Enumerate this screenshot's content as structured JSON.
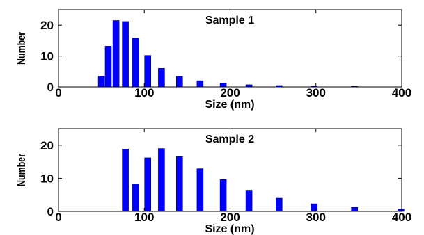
{
  "chart_data": [
    {
      "type": "bar",
      "title": "Sample 1",
      "xlabel": "Size (nm)",
      "ylabel": "Number",
      "xlim": [
        0,
        400
      ],
      "ylim": [
        0,
        25
      ],
      "xticks": [
        0,
        100,
        200,
        300,
        400
      ],
      "yticks": [
        0,
        10,
        20
      ],
      "x": [
        50,
        58,
        67,
        78,
        90,
        104,
        120,
        141,
        165,
        192,
        222,
        257,
        298,
        345
      ],
      "values": [
        3.5,
        13.2,
        21.5,
        21.2,
        15.8,
        10.2,
        6.0,
        3.4,
        2.0,
        1.2,
        0.7,
        0.45,
        0.3,
        0.2
      ],
      "bar_color": "#0000ff",
      "grid": false
    },
    {
      "type": "bar",
      "title": "Sample 2",
      "xlabel": "Size (nm)",
      "ylabel": "Number",
      "xlim": [
        0,
        400
      ],
      "ylim": [
        0,
        25
      ],
      "xticks": [
        0,
        100,
        200,
        300,
        400
      ],
      "yticks": [
        0,
        10,
        20
      ],
      "x": [
        78,
        90,
        104,
        120,
        141,
        165,
        192,
        222,
        257,
        298,
        345,
        399
      ],
      "values": [
        18.8,
        8.3,
        16.2,
        19.0,
        16.6,
        12.9,
        9.6,
        6.4,
        4.0,
        2.3,
        1.2,
        0.7
      ],
      "bar_color": "#0000ff",
      "grid": false
    }
  ]
}
